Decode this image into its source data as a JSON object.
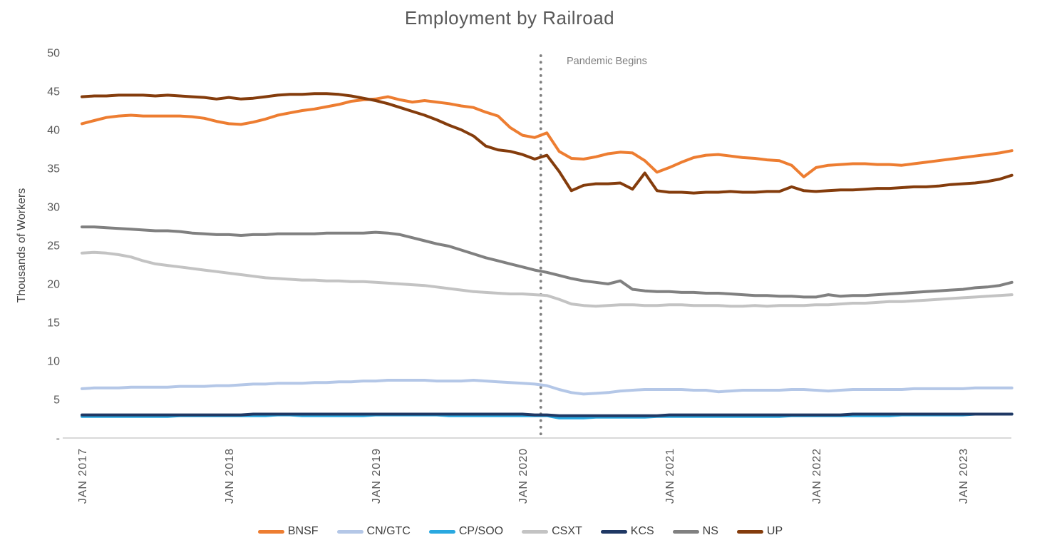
{
  "chart_data": {
    "type": "line",
    "title": "Employment by Railroad",
    "ylabel": "Thousands of Workers",
    "xlabel": "",
    "ylim": [
      0,
      50
    ],
    "x_interval": "monthly",
    "x_range_start": "JAN 2017",
    "grid": false,
    "legend_position": "bottom",
    "y_axis": {
      "ticks": [
        {
          "value": 0,
          "label": "-"
        },
        {
          "value": 5,
          "label": "5"
        },
        {
          "value": 10,
          "label": "10"
        },
        {
          "value": 15,
          "label": "15"
        },
        {
          "value": 20,
          "label": "20"
        },
        {
          "value": 25,
          "label": "25"
        },
        {
          "value": 30,
          "label": "30"
        },
        {
          "value": 35,
          "label": "35"
        },
        {
          "value": 40,
          "label": "40"
        },
        {
          "value": 45,
          "label": "45"
        },
        {
          "value": 50,
          "label": "50"
        }
      ]
    },
    "x_axis": {
      "ticks": [
        {
          "month_index": 0,
          "label": "JAN 2017"
        },
        {
          "month_index": 12,
          "label": "JAN 2018"
        },
        {
          "month_index": 24,
          "label": "JAN 2019"
        },
        {
          "month_index": 36,
          "label": "JAN 2020"
        },
        {
          "month_index": 48,
          "label": "JAN 2021"
        },
        {
          "month_index": 60,
          "label": "JAN 2022"
        },
        {
          "month_index": 72,
          "label": "JAN 2023"
        }
      ]
    },
    "annotation": {
      "label": "Pandemic Begins",
      "month_index": 37.5
    },
    "colors": {
      "title_text": "#595959",
      "tick_text": "#595959",
      "axis_title_text": "#404040",
      "legend_text": "#404040",
      "axis_line": "#d9d9d9",
      "pandemic_line": "#7f7f7f",
      "annotation_text": "#7f7f7f"
    },
    "series": [
      {
        "name": "BNSF",
        "color": "#ED7D31",
        "values": [
          40.8,
          41.2,
          41.6,
          41.8,
          41.9,
          41.8,
          41.8,
          41.8,
          41.8,
          41.7,
          41.5,
          41.1,
          40.8,
          40.7,
          41.0,
          41.4,
          41.9,
          42.2,
          42.5,
          42.7,
          43.0,
          43.3,
          43.7,
          43.9,
          44.0,
          44.3,
          43.9,
          43.6,
          43.8,
          43.6,
          43.4,
          43.1,
          42.9,
          42.3,
          41.8,
          40.3,
          39.3,
          39.0,
          39.6,
          37.2,
          36.3,
          36.2,
          36.5,
          36.9,
          37.1,
          37.0,
          36.0,
          34.5,
          35.1,
          35.8,
          36.4,
          36.7,
          36.8,
          36.6,
          36.4,
          36.3,
          36.1,
          36.0,
          35.4,
          33.9,
          35.1,
          35.4,
          35.5,
          35.6,
          35.6,
          35.5,
          35.5,
          35.4,
          35.6,
          35.8,
          36.0,
          36.2,
          36.4,
          36.6,
          36.8,
          37.0,
          37.3
        ]
      },
      {
        "name": "CN/GTC",
        "color": "#B4C7E7",
        "values": [
          6.4,
          6.5,
          6.5,
          6.5,
          6.6,
          6.6,
          6.6,
          6.6,
          6.7,
          6.7,
          6.7,
          6.8,
          6.8,
          6.9,
          7.0,
          7.0,
          7.1,
          7.1,
          7.1,
          7.2,
          7.2,
          7.3,
          7.3,
          7.4,
          7.4,
          7.5,
          7.5,
          7.5,
          7.5,
          7.4,
          7.4,
          7.4,
          7.5,
          7.4,
          7.3,
          7.2,
          7.1,
          7.0,
          6.8,
          6.3,
          5.9,
          5.7,
          5.8,
          5.9,
          6.1,
          6.2,
          6.3,
          6.3,
          6.3,
          6.3,
          6.2,
          6.2,
          6.0,
          6.1,
          6.2,
          6.2,
          6.2,
          6.2,
          6.3,
          6.3,
          6.2,
          6.1,
          6.2,
          6.3,
          6.3,
          6.3,
          6.3,
          6.3,
          6.4,
          6.4,
          6.4,
          6.4,
          6.4,
          6.5,
          6.5,
          6.5,
          6.5
        ]
      },
      {
        "name": "CP/SOO",
        "color": "#29A8E0",
        "values": [
          2.8,
          2.8,
          2.8,
          2.8,
          2.8,
          2.8,
          2.8,
          2.8,
          2.9,
          2.9,
          2.9,
          2.9,
          2.9,
          2.9,
          2.9,
          2.9,
          3.0,
          3.0,
          2.9,
          2.9,
          2.9,
          2.9,
          2.9,
          2.9,
          3.0,
          3.0,
          3.0,
          3.0,
          3.0,
          3.0,
          2.9,
          2.9,
          2.9,
          2.9,
          2.9,
          2.9,
          2.9,
          2.9,
          2.9,
          2.6,
          2.6,
          2.6,
          2.7,
          2.7,
          2.7,
          2.7,
          2.7,
          2.8,
          2.8,
          2.8,
          2.8,
          2.8,
          2.8,
          2.8,
          2.8,
          2.8,
          2.8,
          2.8,
          2.9,
          2.9,
          2.9,
          2.9,
          2.9,
          2.9,
          2.9,
          2.9,
          2.9,
          3.0,
          3.0,
          3.0,
          3.0,
          3.0,
          3.0,
          3.1,
          3.1,
          3.1,
          3.1
        ]
      },
      {
        "name": "CSXT",
        "color": "#C3C3C3",
        "values": [
          24.0,
          24.1,
          24.0,
          23.8,
          23.5,
          23.0,
          22.6,
          22.4,
          22.2,
          22.0,
          21.8,
          21.6,
          21.4,
          21.2,
          21.0,
          20.8,
          20.7,
          20.6,
          20.5,
          20.5,
          20.4,
          20.4,
          20.3,
          20.3,
          20.2,
          20.1,
          20.0,
          19.9,
          19.8,
          19.6,
          19.4,
          19.2,
          19.0,
          18.9,
          18.8,
          18.7,
          18.7,
          18.6,
          18.5,
          18.0,
          17.4,
          17.2,
          17.1,
          17.2,
          17.3,
          17.3,
          17.2,
          17.2,
          17.3,
          17.3,
          17.2,
          17.2,
          17.2,
          17.1,
          17.1,
          17.2,
          17.1,
          17.2,
          17.2,
          17.2,
          17.3,
          17.3,
          17.4,
          17.5,
          17.5,
          17.6,
          17.7,
          17.7,
          17.8,
          17.9,
          18.0,
          18.1,
          18.2,
          18.3,
          18.4,
          18.5,
          18.6
        ]
      },
      {
        "name": "KCS",
        "color": "#1F3864",
        "values": [
          3.0,
          3.0,
          3.0,
          3.0,
          3.0,
          3.0,
          3.0,
          3.0,
          3.0,
          3.0,
          3.0,
          3.0,
          3.0,
          3.0,
          3.1,
          3.1,
          3.1,
          3.1,
          3.1,
          3.1,
          3.1,
          3.1,
          3.1,
          3.1,
          3.1,
          3.1,
          3.1,
          3.1,
          3.1,
          3.1,
          3.1,
          3.1,
          3.1,
          3.1,
          3.1,
          3.1,
          3.1,
          3.0,
          3.0,
          2.9,
          2.9,
          2.9,
          2.9,
          2.9,
          2.9,
          2.9,
          2.9,
          2.9,
          3.0,
          3.0,
          3.0,
          3.0,
          3.0,
          3.0,
          3.0,
          3.0,
          3.0,
          3.0,
          3.0,
          3.0,
          3.0,
          3.0,
          3.0,
          3.1,
          3.1,
          3.1,
          3.1,
          3.1,
          3.1,
          3.1,
          3.1,
          3.1,
          3.1,
          3.1,
          3.1,
          3.1,
          3.1
        ]
      },
      {
        "name": "NS",
        "color": "#808080",
        "values": [
          27.4,
          27.4,
          27.3,
          27.2,
          27.1,
          27.0,
          26.9,
          26.9,
          26.8,
          26.6,
          26.5,
          26.4,
          26.4,
          26.3,
          26.4,
          26.4,
          26.5,
          26.5,
          26.5,
          26.5,
          26.6,
          26.6,
          26.6,
          26.6,
          26.7,
          26.6,
          26.4,
          26.0,
          25.6,
          25.2,
          24.9,
          24.4,
          23.9,
          23.4,
          23.0,
          22.6,
          22.2,
          21.8,
          21.5,
          21.1,
          20.7,
          20.4,
          20.2,
          20.0,
          20.4,
          19.3,
          19.1,
          19.0,
          19.0,
          18.9,
          18.9,
          18.8,
          18.8,
          18.7,
          18.6,
          18.5,
          18.5,
          18.4,
          18.4,
          18.3,
          18.3,
          18.6,
          18.4,
          18.5,
          18.5,
          18.6,
          18.7,
          18.8,
          18.9,
          19.0,
          19.1,
          19.2,
          19.3,
          19.5,
          19.6,
          19.8,
          20.2
        ]
      },
      {
        "name": "UP",
        "color": "#843C0C",
        "values": [
          44.3,
          44.4,
          44.4,
          44.5,
          44.5,
          44.5,
          44.4,
          44.5,
          44.4,
          44.3,
          44.2,
          44.0,
          44.2,
          44.0,
          44.1,
          44.3,
          44.5,
          44.6,
          44.6,
          44.7,
          44.7,
          44.6,
          44.4,
          44.1,
          43.8,
          43.4,
          42.9,
          42.4,
          41.9,
          41.3,
          40.6,
          40.0,
          39.2,
          37.9,
          37.4,
          37.2,
          36.8,
          36.2,
          36.7,
          34.6,
          32.1,
          32.8,
          33.0,
          33.0,
          33.1,
          32.3,
          34.4,
          32.1,
          31.9,
          31.9,
          31.8,
          31.9,
          31.9,
          32.0,
          31.9,
          31.9,
          32.0,
          32.0,
          32.6,
          32.1,
          32.0,
          32.1,
          32.2,
          32.2,
          32.3,
          32.4,
          32.4,
          32.5,
          32.6,
          32.6,
          32.7,
          32.9,
          33.0,
          33.1,
          33.3,
          33.6,
          34.1
        ]
      }
    ]
  }
}
